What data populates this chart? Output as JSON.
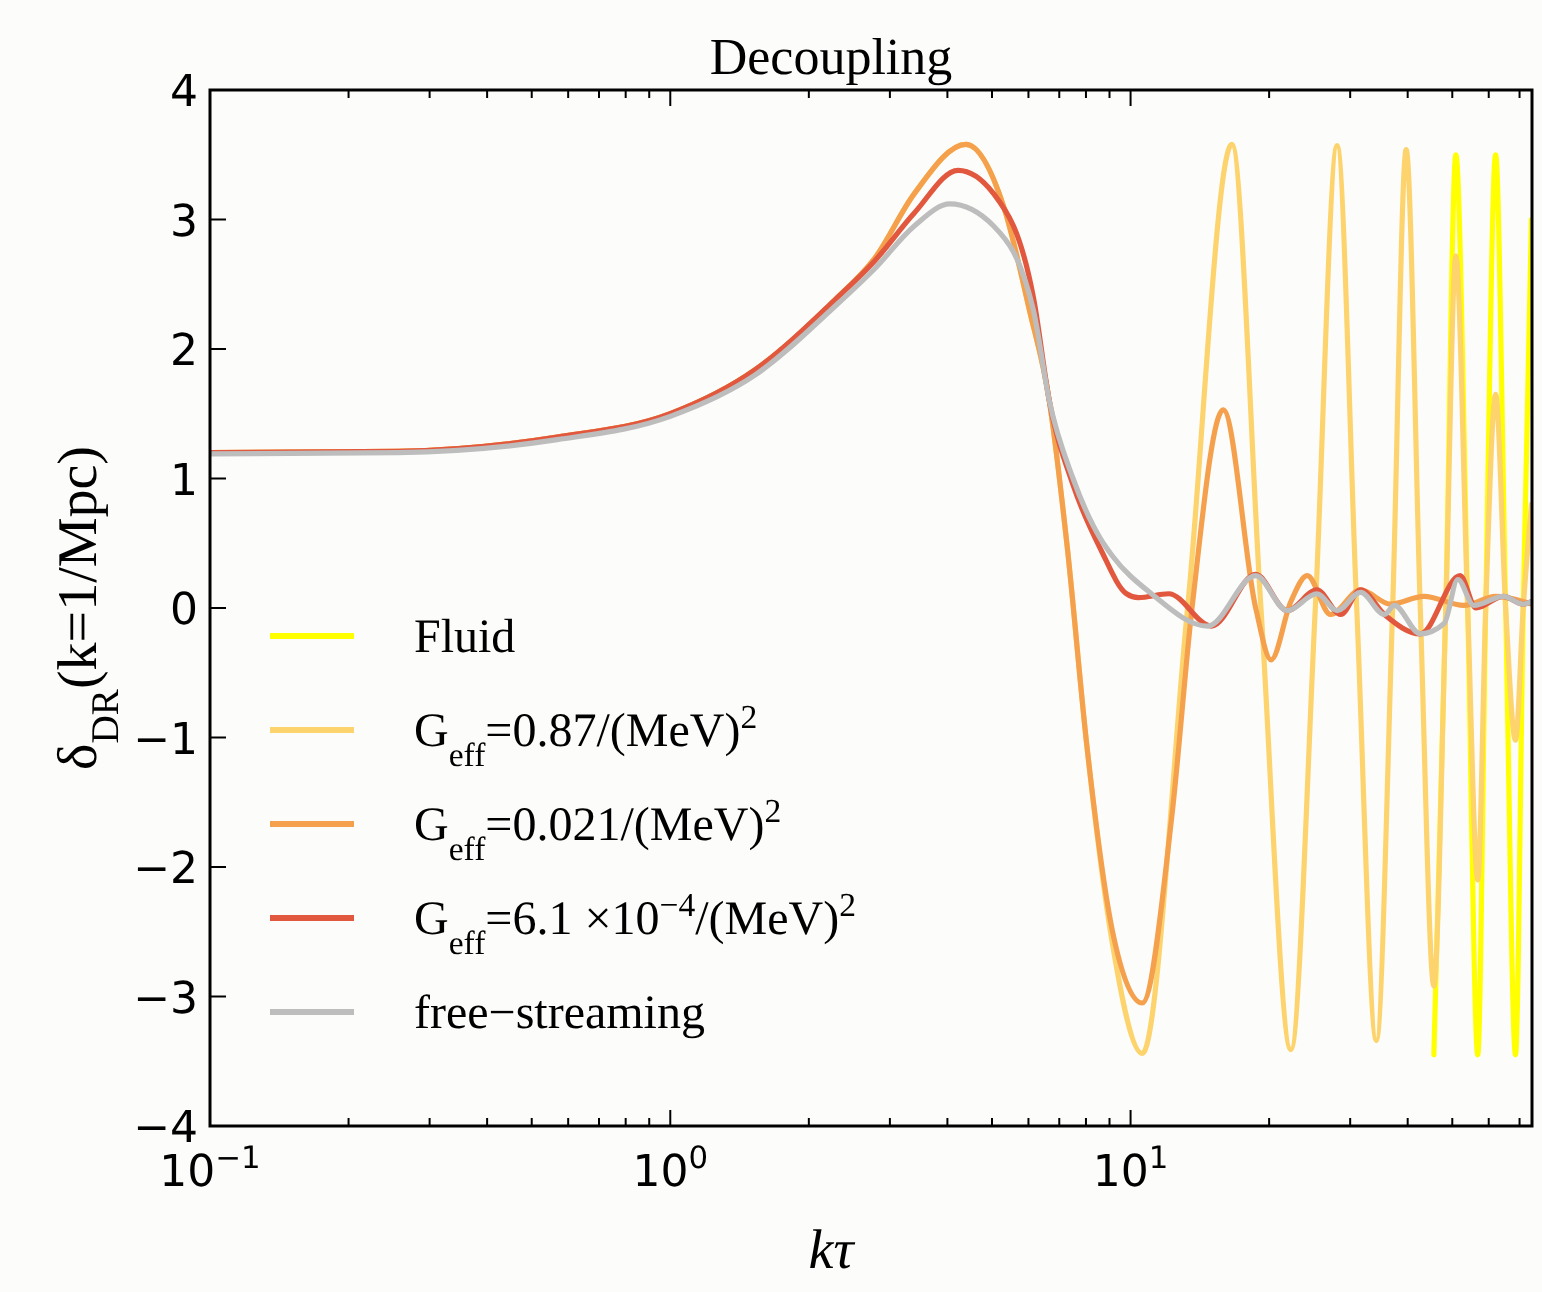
{
  "chart_data": {
    "type": "line",
    "title": "Decoupling",
    "xlabel": "kτ",
    "ylabel": "δ$_{DR}$(k=1/Mpc)",
    "log": "x",
    "grid": false,
    "legend": "bottom left",
    "marker": "none",
    "line_style": "solid",
    "xlim": [
      0.1,
      74.5
    ],
    "ylim": [
      -4,
      4
    ],
    "xticks": [
      {
        "value": 0.1,
        "label": "10$^{−1}$"
      },
      {
        "value": 0.2,
        "label": null
      },
      {
        "value": 0.3,
        "label": null
      },
      {
        "value": 0.4,
        "label": null
      },
      {
        "value": 0.5,
        "label": null
      },
      {
        "value": 0.6,
        "label": null
      },
      {
        "value": 0.7,
        "label": null
      },
      {
        "value": 0.8,
        "label": null
      },
      {
        "value": 0.9,
        "label": null
      },
      {
        "value": 1,
        "label": "10$^{0}$"
      },
      {
        "value": 2,
        "label": null
      },
      {
        "value": 3,
        "label": null
      },
      {
        "value": 4,
        "label": null
      },
      {
        "value": 5,
        "label": null
      },
      {
        "value": 6,
        "label": null
      },
      {
        "value": 7,
        "label": null
      },
      {
        "value": 8,
        "label": null
      },
      {
        "value": 9,
        "label": null
      },
      {
        "value": 10,
        "label": "10$^{1}$"
      },
      {
        "value": 20,
        "label": null
      },
      {
        "value": 30,
        "label": null
      },
      {
        "value": 40,
        "label": null
      },
      {
        "value": 50,
        "label": null
      },
      {
        "value": 60,
        "label": null
      },
      {
        "value": 70,
        "label": null
      }
    ],
    "yticks": [
      -4,
      -3,
      -2,
      -1,
      0,
      1,
      2,
      3,
      4
    ],
    "series": [
      {
        "name": "Fluid",
        "color": "#ffff00",
        "x": [
          45.6,
          48.4,
          50.9,
          54.0,
          56.8,
          59.1,
          62.1,
          65.3,
          68.6,
          71.3,
          74.3
        ],
        "values": [
          -3.45,
          0,
          3.5,
          0,
          -3.45,
          0,
          3.5,
          0,
          -3.45,
          0,
          3.0
        ]
      },
      {
        "name": "G$_{eff}$=0.87/(MeV)$^{2}$",
        "color": "#fdd36e",
        "x": [
          0.1,
          0.257,
          0.568,
          1,
          1.53,
          2.28,
          2.78,
          3.39,
          4.39,
          5.3,
          6.03,
          6.66,
          7.28,
          8.04,
          9.14,
          10.6,
          13.3,
          16.6,
          19.2,
          22.3,
          25.2,
          28.1,
          31.0,
          34.2,
          37.1,
          39.7,
          42.6,
          45.6,
          48.4,
          50.9,
          54.0,
          56.8,
          59.1,
          62.1,
          65.3,
          68.6,
          71.3,
          74.3
        ],
        "values": [
          1.2,
          1.21,
          1.32,
          1.5,
          1.84,
          2.38,
          2.7,
          3.2,
          3.58,
          3.1,
          2.3,
          1.6,
          0.48,
          -1.07,
          -2.6,
          -3.44,
          0,
          3.58,
          0,
          -3.41,
          0,
          3.57,
          0,
          -3.34,
          0,
          3.54,
          0,
          -2.92,
          0,
          2.72,
          0,
          -2.1,
          0,
          1.65,
          0,
          -1.02,
          0,
          0.8
        ]
      },
      {
        "name": "G$_{eff}$=0.021/(MeV)$^{2}$",
        "color": "#f5a04c",
        "x": [
          0.1,
          0.257,
          0.568,
          1,
          1.53,
          2.28,
          2.78,
          3.39,
          4.39,
          5.3,
          6.03,
          6.66,
          7.28,
          8.04,
          9.14,
          10.6,
          12.3,
          13.6,
          15.9,
          18.7,
          20.2,
          22.3,
          24.2,
          27.2,
          31.6,
          36.7,
          43.4,
          53.0,
          62.1,
          74.3
        ],
        "values": [
          1.2,
          1.21,
          1.32,
          1.5,
          1.84,
          2.38,
          2.7,
          3.2,
          3.58,
          3.1,
          2.3,
          1.6,
          0.48,
          -1.07,
          -2.5,
          -3.05,
          -1.6,
          0,
          1.53,
          0,
          -0.4,
          0.05,
          0.25,
          -0.05,
          0.14,
          0.03,
          0.09,
          0.02,
          0.09,
          0.03
        ]
      },
      {
        "name": "G$_{eff}$=6.1 ×10$^{−4}$/(MeV)$^{2}$",
        "color": "#e2583e",
        "x": [
          0.1,
          0.257,
          0.568,
          1,
          1.53,
          2.28,
          2.78,
          3.39,
          4.22,
          5.04,
          6.15,
          6.66,
          7.5,
          8.62,
          9.8,
          10.4,
          12.1,
          15.0,
          18.7,
          21.9,
          25.4,
          28.6,
          31.6,
          35.6,
          42.6,
          52.0,
          56.3,
          64.6,
          71.3,
          74.3
        ],
        "values": [
          1.2,
          1.21,
          1.32,
          1.5,
          1.84,
          2.38,
          2.68,
          3.05,
          3.38,
          3.2,
          2.4,
          1.6,
          0.95,
          0.45,
          0.11,
          0.08,
          0.11,
          -0.14,
          0.26,
          -0.02,
          0.14,
          -0.05,
          0.14,
          -0.05,
          -0.2,
          0.25,
          0.0,
          0.09,
          0.03,
          0.05
        ]
      },
      {
        "name": "free−streaming",
        "color": "#bdbdbd",
        "x": [
          0.1,
          0.257,
          0.568,
          1,
          1.53,
          2.28,
          2.78,
          3.39,
          4.05,
          5.04,
          6.15,
          6.66,
          7.5,
          8.62,
          9.14,
          11.1,
          14.7,
          18.7,
          21.9,
          25.4,
          28.1,
          31.6,
          35.6,
          37.4,
          42.6,
          48.0,
          51.4,
          55.7,
          64.6,
          71.3,
          74.3
        ],
        "values": [
          1.19,
          1.2,
          1.3,
          1.48,
          1.8,
          2.33,
          2.62,
          2.95,
          3.12,
          2.95,
          2.3,
          1.6,
          1.0,
          0.53,
          0.4,
          0.11,
          -0.14,
          0.25,
          -0.02,
          0.11,
          -0.02,
          0.12,
          -0.05,
          0.02,
          -0.2,
          -0.12,
          0.22,
          0.02,
          0.09,
          0.03,
          0.05
        ]
      }
    ]
  }
}
